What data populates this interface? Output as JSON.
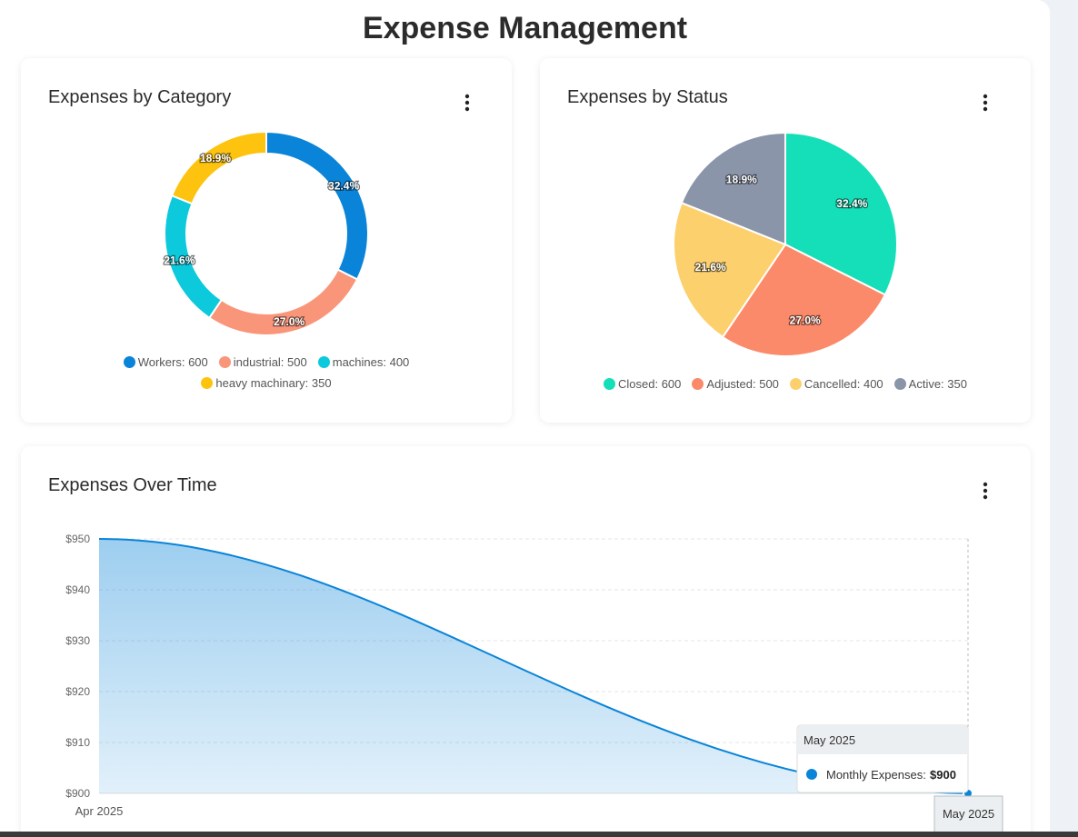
{
  "header": {
    "title": "Expense Management"
  },
  "chart_data": [
    {
      "type": "donut",
      "title": "Expenses by Category",
      "values": [
        600,
        500,
        400,
        350
      ],
      "legend_labels": [
        "Workers: 600",
        "industrial: 500",
        "machines: 400",
        "heavy machinary: 350"
      ],
      "percent_labels": [
        "32.4%",
        "27.0%",
        "21.6%",
        "18.9%"
      ],
      "colors": [
        "#0a84d8",
        "#f9967a",
        "#0ccadb",
        "#fdc30f"
      ]
    },
    {
      "type": "pie",
      "title": "Expenses by Status",
      "values": [
        600,
        500,
        400,
        350
      ],
      "legend_labels": [
        "Closed: 600",
        "Adjusted: 500",
        "Cancelled: 400",
        "Active: 350"
      ],
      "percent_labels": [
        "32.4%",
        "27.0%",
        "21.6%",
        "18.9%"
      ],
      "colors": [
        "#14dfb8",
        "#fb8a6a",
        "#fdd06e",
        "#8b95aa"
      ]
    },
    {
      "type": "area",
      "title": "Expenses Over Time",
      "categories": [
        "Apr 2025",
        "May 2025"
      ],
      "series": [
        {
          "name": "Monthly Expenses",
          "color": "#0a84d8",
          "values": [
            950,
            900
          ]
        }
      ],
      "ylim": [
        900,
        950
      ],
      "yticks": [
        {
          "value": 900,
          "label": "$900"
        },
        {
          "value": 910,
          "label": "$910"
        },
        {
          "value": 920,
          "label": "$920"
        },
        {
          "value": 930,
          "label": "$930"
        },
        {
          "value": 940,
          "label": "$940"
        },
        {
          "value": 950,
          "label": "$950"
        }
      ],
      "grid": true,
      "tooltip": {
        "title": "May 2025",
        "label": "Monthly Expenses:",
        "value_label": "$900"
      }
    }
  ]
}
